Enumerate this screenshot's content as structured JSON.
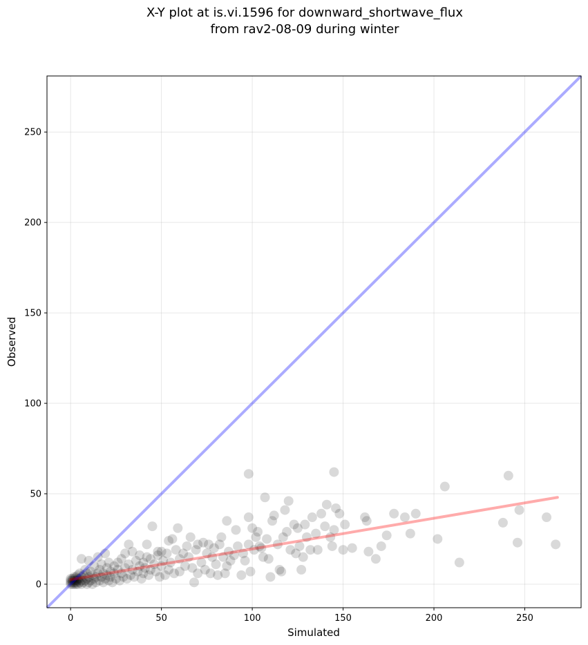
{
  "chart_data": {
    "type": "scatter",
    "title": [
      "X-Y plot at is.vi.1596 for downward_shortwave_flux",
      "from rav2-08-09 during winter"
    ],
    "xlabel": "Simulated",
    "ylabel": "Observed",
    "xlim": [
      -13,
      281
    ],
    "ylim": [
      -13,
      281
    ],
    "xticks": [
      0,
      50,
      100,
      150,
      200,
      250
    ],
    "yticks": [
      0,
      50,
      100,
      150,
      200,
      250
    ],
    "grid": true,
    "point_color": "#000000",
    "point_alpha": 0.15,
    "identity_line": {
      "color": "#0000ff",
      "alpha": 0.33
    },
    "fit_line": {
      "color": "#ff0000",
      "alpha": 0.33,
      "x": [
        0,
        268
      ],
      "y": [
        2.5,
        48
      ]
    },
    "points": [
      [
        0,
        0
      ],
      [
        0,
        1
      ],
      [
        0,
        2
      ],
      [
        0,
        3
      ],
      [
        1,
        0
      ],
      [
        1,
        1
      ],
      [
        1,
        2
      ],
      [
        1,
        3
      ],
      [
        2,
        0
      ],
      [
        2,
        1
      ],
      [
        2,
        2
      ],
      [
        2,
        3
      ],
      [
        2,
        4
      ],
      [
        3,
        0
      ],
      [
        3,
        1
      ],
      [
        3,
        2
      ],
      [
        3,
        4
      ],
      [
        4,
        0
      ],
      [
        4,
        2
      ],
      [
        4,
        3
      ],
      [
        4,
        5
      ],
      [
        5,
        1
      ],
      [
        5,
        3
      ],
      [
        5,
        6
      ],
      [
        6,
        0
      ],
      [
        6,
        2
      ],
      [
        6,
        4
      ],
      [
        6,
        14
      ],
      [
        7,
        1
      ],
      [
        7,
        5
      ],
      [
        8,
        2
      ],
      [
        8,
        8
      ],
      [
        9,
        0
      ],
      [
        9,
        3
      ],
      [
        9,
        6
      ],
      [
        10,
        1
      ],
      [
        10,
        4
      ],
      [
        10,
        13
      ],
      [
        11,
        2
      ],
      [
        11,
        7
      ],
      [
        12,
        0
      ],
      [
        12,
        5
      ],
      [
        13,
        3
      ],
      [
        13,
        10
      ],
      [
        14,
        1
      ],
      [
        14,
        4
      ],
      [
        15,
        6
      ],
      [
        15,
        15
      ],
      [
        16,
        2
      ],
      [
        16,
        8
      ],
      [
        17,
        4
      ],
      [
        17,
        11
      ],
      [
        18,
        1
      ],
      [
        18,
        6
      ],
      [
        19,
        3
      ],
      [
        19,
        17
      ],
      [
        20,
        5
      ],
      [
        20,
        9
      ],
      [
        21,
        2
      ],
      [
        21,
        12
      ],
      [
        22,
        4
      ],
      [
        22,
        7
      ],
      [
        23,
        1
      ],
      [
        24,
        6
      ],
      [
        24,
        10
      ],
      [
        25,
        3
      ],
      [
        26,
        8
      ],
      [
        26,
        12
      ],
      [
        27,
        2
      ],
      [
        28,
        6
      ],
      [
        28,
        14
      ],
      [
        29,
        4
      ],
      [
        30,
        9
      ],
      [
        30,
        17
      ],
      [
        31,
        3
      ],
      [
        32,
        11
      ],
      [
        32,
        22
      ],
      [
        33,
        5
      ],
      [
        34,
        8
      ],
      [
        34,
        18
      ],
      [
        35,
        4
      ],
      [
        36,
        13
      ],
      [
        37,
        7
      ],
      [
        38,
        10
      ],
      [
        38,
        16
      ],
      [
        39,
        3
      ],
      [
        40,
        12
      ],
      [
        40,
        6
      ],
      [
        41,
        9
      ],
      [
        42,
        22
      ],
      [
        42,
        15
      ],
      [
        43,
        5
      ],
      [
        44,
        14
      ],
      [
        44,
        8
      ],
      [
        45,
        32
      ],
      [
        46,
        11
      ],
      [
        47,
        7
      ],
      [
        48,
        16
      ],
      [
        48,
        18
      ],
      [
        49,
        4
      ],
      [
        50,
        10
      ],
      [
        50,
        18
      ],
      [
        51,
        13
      ],
      [
        52,
        5
      ],
      [
        53,
        17
      ],
      [
        54,
        8
      ],
      [
        54,
        24
      ],
      [
        55,
        12
      ],
      [
        56,
        25
      ],
      [
        57,
        6
      ],
      [
        58,
        19
      ],
      [
        59,
        31
      ],
      [
        60,
        14
      ],
      [
        60,
        7
      ],
      [
        62,
        17
      ],
      [
        63,
        10
      ],
      [
        64,
        21
      ],
      [
        65,
        15
      ],
      [
        66,
        26
      ],
      [
        67,
        9
      ],
      [
        68,
        1
      ],
      [
        69,
        19
      ],
      [
        70,
        6
      ],
      [
        70,
        22
      ],
      [
        72,
        12
      ],
      [
        73,
        23
      ],
      [
        74,
        8
      ],
      [
        75,
        17
      ],
      [
        76,
        22
      ],
      [
        77,
        6
      ],
      [
        78,
        15
      ],
      [
        79,
        20
      ],
      [
        80,
        11
      ],
      [
        81,
        5
      ],
      [
        82,
        22
      ],
      [
        83,
        26
      ],
      [
        84,
        15
      ],
      [
        85,
        6
      ],
      [
        86,
        35
      ],
      [
        86,
        10
      ],
      [
        87,
        18
      ],
      [
        88,
        13
      ],
      [
        90,
        16
      ],
      [
        91,
        30
      ],
      [
        92,
        21
      ],
      [
        94,
        5
      ],
      [
        95,
        17
      ],
      [
        96,
        13
      ],
      [
        98,
        61
      ],
      [
        98,
        37
      ],
      [
        98,
        22
      ],
      [
        99,
        7
      ],
      [
        100,
        31
      ],
      [
        101,
        19
      ],
      [
        102,
        26
      ],
      [
        103,
        29
      ],
      [
        104,
        21
      ],
      [
        105,
        20
      ],
      [
        106,
        15
      ],
      [
        107,
        48
      ],
      [
        108,
        25
      ],
      [
        109,
        14
      ],
      [
        110,
        4
      ],
      [
        111,
        35
      ],
      [
        112,
        38
      ],
      [
        114,
        22
      ],
      [
        115,
        8
      ],
      [
        116,
        7
      ],
      [
        117,
        26
      ],
      [
        118,
        41
      ],
      [
        119,
        29
      ],
      [
        120,
        46
      ],
      [
        121,
        19
      ],
      [
        123,
        33
      ],
      [
        124,
        17
      ],
      [
        125,
        31
      ],
      [
        126,
        21
      ],
      [
        127,
        8
      ],
      [
        128,
        15
      ],
      [
        129,
        33
      ],
      [
        130,
        26
      ],
      [
        132,
        19
      ],
      [
        133,
        37
      ],
      [
        135,
        28
      ],
      [
        136,
        19
      ],
      [
        138,
        39
      ],
      [
        140,
        32
      ],
      [
        141,
        44
      ],
      [
        143,
        26
      ],
      [
        144,
        21
      ],
      [
        145,
        62
      ],
      [
        145,
        30
      ],
      [
        146,
        42
      ],
      [
        148,
        39
      ],
      [
        150,
        19
      ],
      [
        151,
        33
      ],
      [
        155,
        20
      ],
      [
        162,
        37
      ],
      [
        163,
        35
      ],
      [
        164,
        18
      ],
      [
        168,
        14
      ],
      [
        171,
        21
      ],
      [
        174,
        27
      ],
      [
        178,
        39
      ],
      [
        184,
        37
      ],
      [
        187,
        28
      ],
      [
        190,
        39
      ],
      [
        202,
        25
      ],
      [
        206,
        54
      ],
      [
        214,
        12
      ],
      [
        238,
        34
      ],
      [
        241,
        60
      ],
      [
        246,
        23
      ],
      [
        247,
        41
      ],
      [
        262,
        37
      ],
      [
        267,
        22
      ]
    ]
  }
}
